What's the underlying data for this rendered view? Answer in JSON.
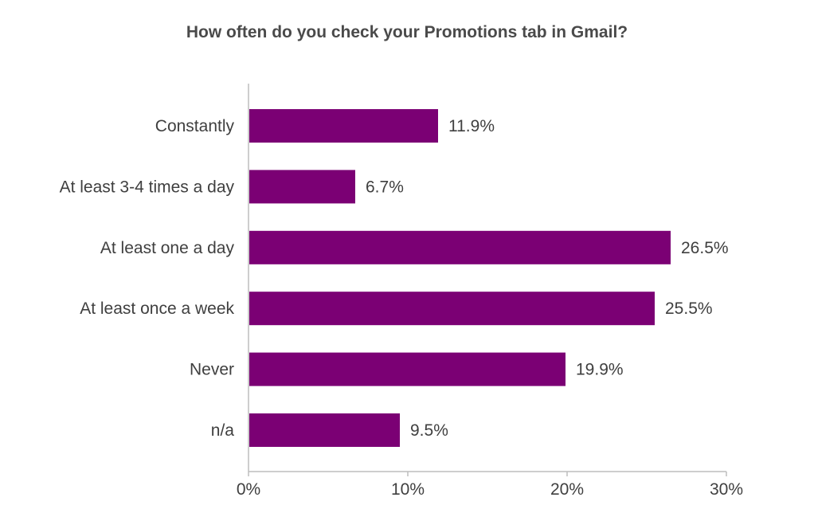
{
  "chart_data": {
    "type": "bar",
    "orientation": "horizontal",
    "title": "How often do you check your Promotions tab in Gmail?",
    "categories": [
      "Constantly",
      "At least 3-4 times a day",
      "At least one a day",
      "At least once a week",
      "Never",
      "n/a"
    ],
    "values": [
      11.9,
      6.7,
      26.5,
      25.5,
      19.9,
      9.5
    ],
    "value_labels": [
      "11.9%",
      "6.7%",
      "26.5%",
      "25.5%",
      "19.9%",
      "9.5%"
    ],
    "xlim": [
      0,
      30
    ],
    "x_ticks": [
      0,
      10,
      20,
      30
    ],
    "x_tick_labels": [
      "0%",
      "10%",
      "20%",
      "30%"
    ],
    "grid": false,
    "legend": "none",
    "bar_color": "#7b0074",
    "axis_color": "#bdbdbd"
  }
}
